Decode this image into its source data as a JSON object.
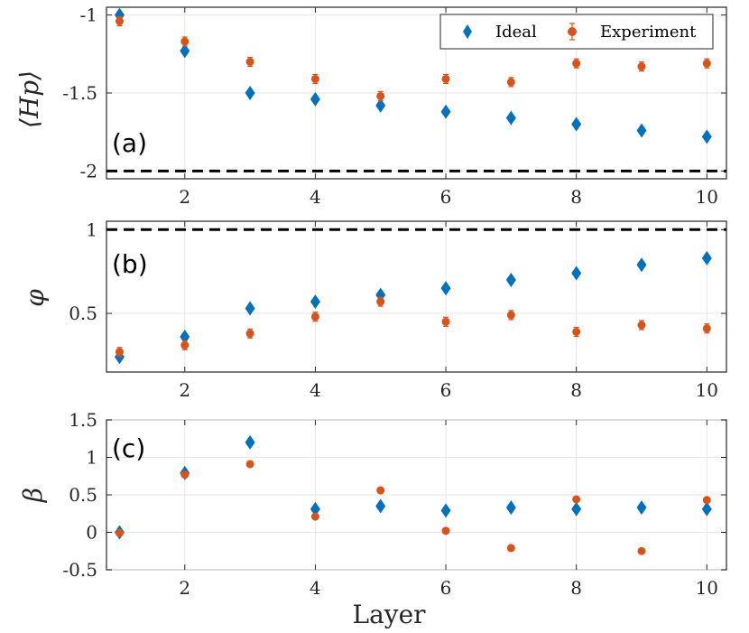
{
  "chart_data": [
    {
      "type": "scatter",
      "panel_label": "(a)",
      "ylabel": "⟨Hp⟩",
      "xlabel": "",
      "x": [
        1,
        2,
        3,
        4,
        5,
        6,
        7,
        8,
        9,
        10
      ],
      "xlim": [
        0.8,
        10.3
      ],
      "ylim": [
        -2.05,
        -0.95
      ],
      "yticks": [
        -1,
        -1.5,
        -2
      ],
      "ytick_labels": [
        "-1",
        "-1.5",
        "-2"
      ],
      "xticks": [
        2,
        4,
        6,
        8,
        10
      ],
      "xtick_labels": [
        "2",
        "4",
        "6",
        "8",
        "10"
      ],
      "reference_line": -2,
      "legend": {
        "position": "top-right",
        "entries": [
          "Ideal",
          "Experiment"
        ]
      },
      "series": [
        {
          "name": "Ideal",
          "marker": "diamond",
          "values": [
            -1.0,
            -1.23,
            -1.5,
            -1.54,
            -1.58,
            -1.62,
            -1.66,
            -1.7,
            -1.74,
            -1.78
          ]
        },
        {
          "name": "Experiment",
          "marker": "circle",
          "errorbars": true,
          "values": [
            -1.04,
            -1.17,
            -1.3,
            -1.41,
            -1.52,
            -1.41,
            -1.43,
            -1.31,
            -1.33,
            -1.31
          ]
        }
      ]
    },
    {
      "type": "scatter",
      "panel_label": "(b)",
      "ylabel": "φ",
      "xlabel": "",
      "x": [
        1,
        2,
        3,
        4,
        5,
        6,
        7,
        8,
        9,
        10
      ],
      "xlim": [
        0.8,
        10.3
      ],
      "ylim": [
        0.15,
        1.05
      ],
      "yticks": [
        1,
        0.5
      ],
      "ytick_labels": [
        "1",
        "0.5"
      ],
      "xticks": [
        2,
        4,
        6,
        8,
        10
      ],
      "xtick_labels": [
        "2",
        "4",
        "6",
        "8",
        "10"
      ],
      "reference_line": 1,
      "series": [
        {
          "name": "Ideal",
          "marker": "diamond",
          "values": [
            0.24,
            0.36,
            0.53,
            0.57,
            0.61,
            0.65,
            0.7,
            0.74,
            0.79,
            0.83
          ]
        },
        {
          "name": "Experiment",
          "marker": "circle",
          "errorbars": true,
          "values": [
            0.27,
            0.31,
            0.38,
            0.48,
            0.57,
            0.45,
            0.49,
            0.39,
            0.43,
            0.41
          ]
        }
      ]
    },
    {
      "type": "scatter",
      "panel_label": "(c)",
      "ylabel": "β",
      "xlabel": "Layer",
      "x": [
        1,
        2,
        3,
        4,
        5,
        6,
        7,
        8,
        9,
        10
      ],
      "xlim": [
        0.8,
        10.3
      ],
      "ylim": [
        -0.5,
        1.5
      ],
      "yticks": [
        1.5,
        1,
        0.5,
        0,
        -0.5
      ],
      "ytick_labels": [
        "1.5",
        "1",
        "0.5",
        "0",
        "-0.5"
      ],
      "xticks": [
        2,
        4,
        6,
        8,
        10
      ],
      "xtick_labels": [
        "2",
        "4",
        "6",
        "8",
        "10"
      ],
      "series": [
        {
          "name": "Ideal",
          "marker": "diamond",
          "values": [
            0.0,
            0.79,
            1.2,
            0.31,
            0.35,
            0.29,
            0.33,
            0.31,
            0.33,
            0.31
          ]
        },
        {
          "name": "Experiment",
          "marker": "circle",
          "values": [
            -0.01,
            0.77,
            0.91,
            0.21,
            0.56,
            0.02,
            -0.21,
            0.44,
            -0.25,
            0.43
          ]
        }
      ]
    }
  ],
  "colors": {
    "ideal": "#0072BD",
    "experiment": "#D95319",
    "axis": "#262626",
    "grid": "#e6e6e6",
    "reference": "#000000"
  }
}
